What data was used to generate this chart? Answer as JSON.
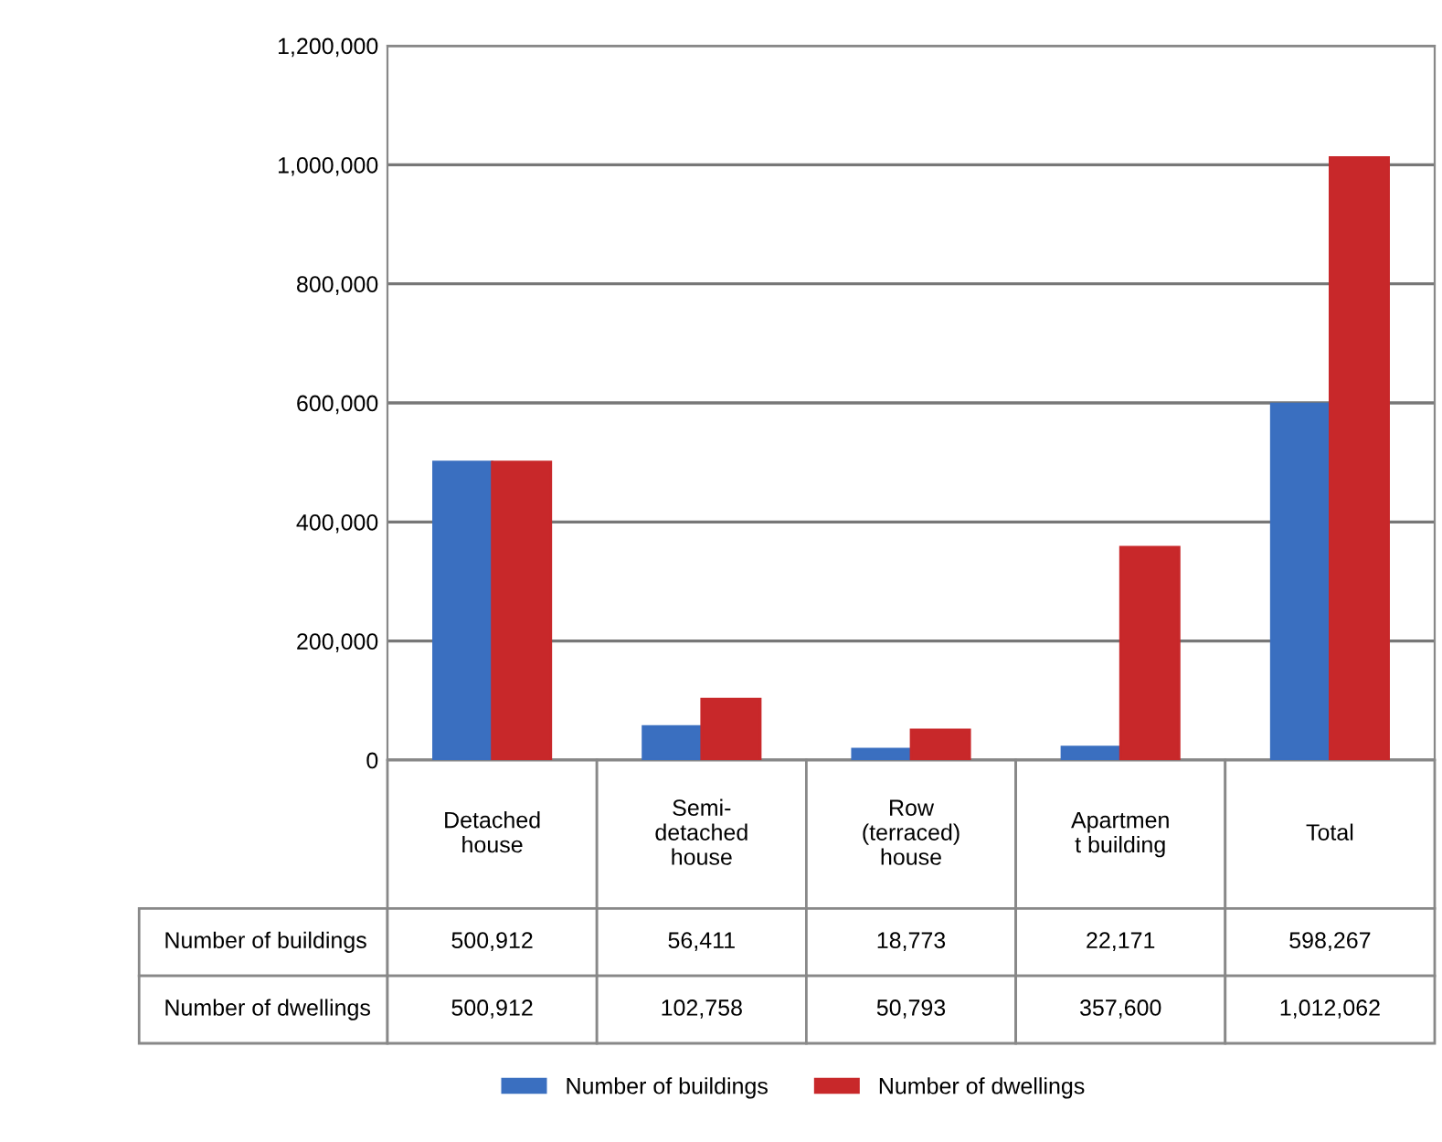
{
  "chart_data": {
    "type": "bar",
    "categories": [
      "Detached\nhouse",
      "Semi-\ndetached\nhouse",
      "Row\n(terraced)\nhouse",
      "Apartmen\nt building",
      "Total"
    ],
    "series": [
      {
        "name": "Number of buildings",
        "color": "#3a6fc0",
        "values": [
          500912,
          56411,
          18773,
          22171,
          598267
        ],
        "value_labels": [
          "500,912",
          "56,411",
          "18,773",
          "22,171",
          "598,267"
        ]
      },
      {
        "name": "Number of dwellings",
        "color": "#c8282a",
        "values": [
          500912,
          102758,
          50793,
          357600,
          1012062
        ],
        "value_labels": [
          "500,912",
          "102,758",
          "50,793",
          "357,600",
          "1,012,062"
        ]
      }
    ],
    "ylim": [
      0,
      1200000
    ],
    "yticks": [
      {
        "value": 0,
        "label": "0"
      },
      {
        "value": 200000,
        "label": "200,000"
      },
      {
        "value": 400000,
        "label": "400,000"
      },
      {
        "value": 600000,
        "label": "600,000"
      },
      {
        "value": 800000,
        "label": "800,000"
      },
      {
        "value": 1000000,
        "label": "1,000,000"
      },
      {
        "value": 1200000,
        "label": "1,200,000"
      }
    ],
    "grid": "y",
    "legend": "bottom"
  }
}
